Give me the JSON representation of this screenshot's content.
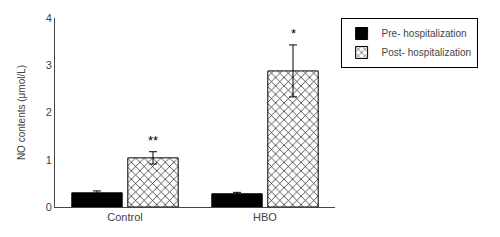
{
  "chart_data": {
    "type": "bar",
    "categories": [
      "Control",
      "HBO"
    ],
    "series": [
      {
        "name": "Pre- hospitalization",
        "color": "#000000",
        "values": [
          0.3,
          0.28
        ],
        "errors": [
          0.04,
          0.03
        ]
      },
      {
        "name": "Post- hospitalization",
        "color": "#ffffff",
        "values": [
          1.04,
          2.88
        ],
        "errors": [
          0.13,
          0.55
        ]
      }
    ],
    "ylabel": "NO contents (μmol/L)",
    "ylim": [
      0,
      4
    ],
    "yticks": [
      0,
      1,
      2,
      3,
      4
    ],
    "grid": false,
    "legend": "upper right",
    "annotations": [
      {
        "text": "**",
        "category": "Control",
        "series": "Post- hospitalization"
      },
      {
        "text": "*",
        "category": "HBO",
        "series": "Post- hospitalization"
      }
    ]
  }
}
